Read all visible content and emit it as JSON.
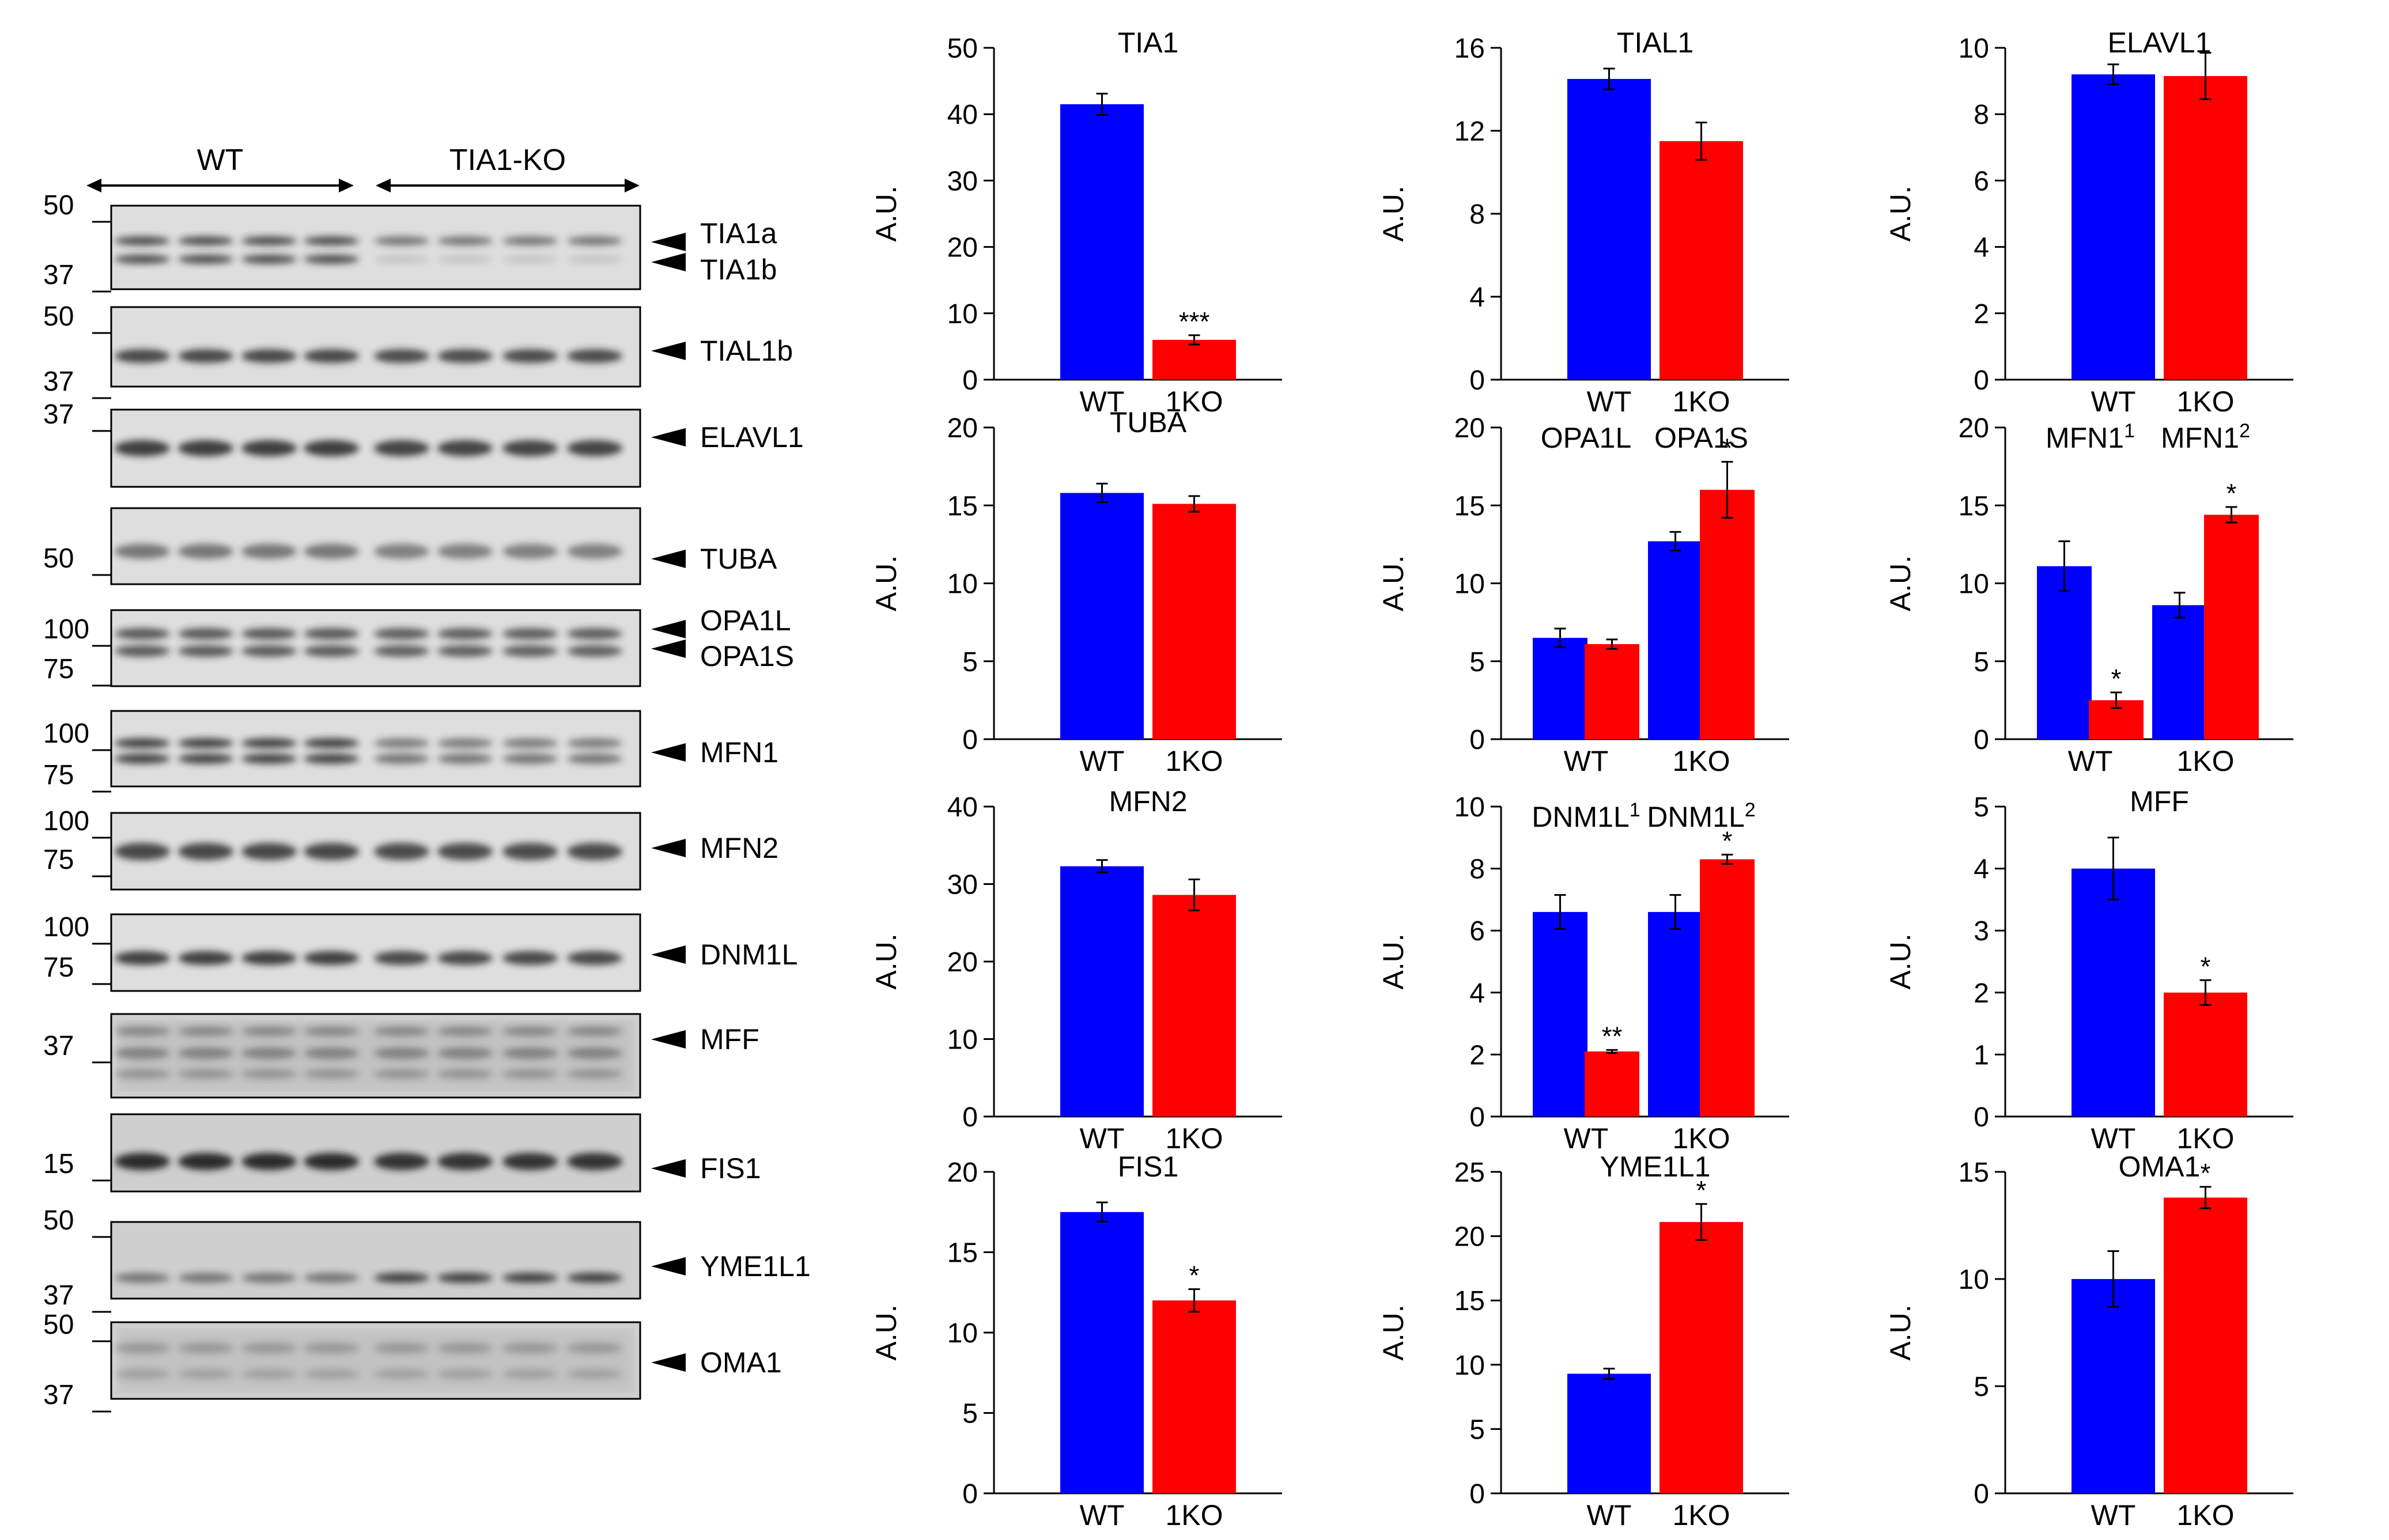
{
  "western_blot": {
    "group_labels": [
      "WT",
      "TIA1-KO"
    ],
    "panels": [
      {
        "mw_markers": [
          "50",
          "37"
        ],
        "bands": [
          "TIA1a",
          "TIA1b"
        ]
      },
      {
        "mw_markers": [
          "50",
          "37"
        ],
        "bands": [
          "TIAL1b"
        ]
      },
      {
        "mw_markers": [
          "37"
        ],
        "bands": [
          "ELAVL1"
        ]
      },
      {
        "mw_markers": [
          "50"
        ],
        "bands": [
          "TUBA"
        ]
      },
      {
        "mw_markers": [
          "100",
          "75"
        ],
        "bands": [
          "OPA1L",
          "OPA1S"
        ]
      },
      {
        "mw_markers": [
          "100",
          "75"
        ],
        "bands": [
          "MFN1"
        ]
      },
      {
        "mw_markers": [
          "100",
          "75"
        ],
        "bands": [
          "MFN2"
        ]
      },
      {
        "mw_markers": [
          "100",
          "75"
        ],
        "bands": [
          "DNM1L"
        ]
      },
      {
        "mw_markers": [
          "37"
        ],
        "bands": [
          "MFF"
        ]
      },
      {
        "mw_markers": [
          "15"
        ],
        "bands": [
          "FIS1"
        ]
      },
      {
        "mw_markers": [
          "50",
          "37"
        ],
        "bands": [
          "YME1L1"
        ]
      },
      {
        "mw_markers": [
          "50",
          "37"
        ],
        "bands": [
          "OMA1"
        ]
      }
    ]
  },
  "colors": {
    "wt": "#0000FF",
    "ko": "#FF0000"
  },
  "chart_data": [
    {
      "type": "bar",
      "title": "TIA1",
      "ylabel": "A.U.",
      "ylim": [
        0,
        50
      ],
      "yticks": [
        "0",
        "10",
        "20",
        "30",
        "40",
        "50"
      ],
      "categories": [
        "WT",
        "1KO"
      ],
      "values": [
        41.5,
        6.0
      ],
      "errors": [
        1.6,
        0.7
      ],
      "significance": [
        "",
        "***"
      ]
    },
    {
      "type": "bar",
      "title": "TIAL1",
      "ylabel": "A.U.",
      "ylim": [
        0,
        16
      ],
      "yticks": [
        "0",
        "4",
        "8",
        "12",
        "16"
      ],
      "categories": [
        "WT",
        "1KO"
      ],
      "values": [
        14.5,
        11.5
      ],
      "errors": [
        0.5,
        0.9
      ],
      "significance": [
        "",
        ""
      ]
    },
    {
      "type": "bar",
      "title": "ELAVL1",
      "ylabel": "A.U.",
      "ylim": [
        0,
        10
      ],
      "yticks": [
        "0",
        "2",
        "4",
        "6",
        "8",
        "10"
      ],
      "categories": [
        "WT",
        "1KO"
      ],
      "values": [
        9.2,
        9.15
      ],
      "errors": [
        0.3,
        0.7
      ],
      "significance": [
        "",
        ""
      ]
    },
    {
      "type": "bar",
      "title": "TUBA",
      "ylabel": "A.U.",
      "ylim": [
        0,
        20
      ],
      "yticks": [
        "0",
        "5",
        "10",
        "15",
        "20"
      ],
      "categories": [
        "WT",
        "1KO"
      ],
      "values": [
        15.8,
        15.1
      ],
      "errors": [
        0.6,
        0.5
      ],
      "significance": [
        "",
        ""
      ]
    },
    {
      "type": "bar",
      "title": "",
      "ylabel": "A.U.",
      "ylim": [
        0,
        20
      ],
      "yticks": [
        "0",
        "5",
        "10",
        "15",
        "20"
      ],
      "group_titles": [
        "OPA1L",
        "OPA1S"
      ],
      "categories": [
        "WT",
        "1KO",
        "WT",
        "1KO"
      ],
      "values": [
        6.5,
        6.1,
        12.7,
        16.0
      ],
      "errors": [
        0.6,
        0.3,
        0.6,
        1.8
      ],
      "significance": [
        "",
        "",
        "",
        "*"
      ],
      "xlabels": [
        "WT",
        "1KO"
      ]
    },
    {
      "type": "bar",
      "title": "",
      "ylabel": "A.U.",
      "ylim": [
        0,
        20
      ],
      "yticks": [
        "0",
        "5",
        "10",
        "15",
        "20"
      ],
      "group_titles": [
        "MFN1",
        "MFN1"
      ],
      "group_title_sups": [
        "1",
        "2"
      ],
      "categories": [
        "WT",
        "1KO",
        "WT",
        "1KO"
      ],
      "values": [
        11.1,
        2.5,
        8.6,
        14.4
      ],
      "errors": [
        1.6,
        0.5,
        0.8,
        0.5
      ],
      "significance": [
        "",
        "*",
        "",
        "*"
      ],
      "xlabels": [
        "WT",
        "1KO"
      ]
    },
    {
      "type": "bar",
      "title": "MFN2",
      "ylabel": "A.U.",
      "ylim": [
        0,
        40
      ],
      "yticks": [
        "0",
        "10",
        "20",
        "30",
        "40"
      ],
      "categories": [
        "WT",
        "1KO"
      ],
      "values": [
        32.3,
        28.6
      ],
      "errors": [
        0.8,
        2.0
      ],
      "significance": [
        "",
        ""
      ]
    },
    {
      "type": "bar",
      "title": "",
      "ylabel": "A.U.",
      "ylim": [
        0,
        10
      ],
      "yticks": [
        "0",
        "2",
        "4",
        "6",
        "8",
        "10"
      ],
      "group_titles": [
        "DNM1L",
        "DNM1L"
      ],
      "group_title_sups": [
        "1",
        "2"
      ],
      "categories": [
        "WT",
        "1KO",
        "WT",
        "1KO"
      ],
      "values": [
        6.6,
        2.1,
        6.6,
        8.3
      ],
      "errors": [
        0.55,
        0.05,
        0.55,
        0.15
      ],
      "significance": [
        "",
        "**",
        "",
        "*"
      ],
      "xlabels": [
        "WT",
        "1KO"
      ]
    },
    {
      "type": "bar",
      "title": "MFF",
      "ylabel": "A.U.",
      "ylim": [
        0,
        5
      ],
      "yticks": [
        "0",
        "1",
        "2",
        "3",
        "4",
        "5"
      ],
      "categories": [
        "WT",
        "1KO"
      ],
      "values": [
        4.0,
        2.0
      ],
      "errors": [
        0.5,
        0.2
      ],
      "significance": [
        "",
        "*"
      ]
    },
    {
      "type": "bar",
      "title": "FIS1",
      "ylabel": "A.U.",
      "ylim": [
        0,
        20
      ],
      "yticks": [
        "0",
        "5",
        "10",
        "15",
        "20"
      ],
      "categories": [
        "WT",
        "1KO"
      ],
      "values": [
        17.5,
        12.0
      ],
      "errors": [
        0.6,
        0.7
      ],
      "significance": [
        "",
        "*"
      ]
    },
    {
      "type": "bar",
      "title": "YME1L1",
      "ylabel": "A.U.",
      "ylim": [
        0,
        25
      ],
      "yticks": [
        "0",
        "5",
        "10",
        "15",
        "20",
        "25"
      ],
      "categories": [
        "WT",
        "1KO"
      ],
      "values": [
        9.3,
        21.1
      ],
      "errors": [
        0.4,
        1.4
      ],
      "significance": [
        "",
        "*"
      ]
    },
    {
      "type": "bar",
      "title": "OMA1",
      "ylabel": "A.U.",
      "ylim": [
        0,
        15
      ],
      "yticks": [
        "0",
        "5",
        "10",
        "15"
      ],
      "categories": [
        "WT",
        "1KO"
      ],
      "values": [
        10.0,
        13.8
      ],
      "errors": [
        1.3,
        0.5
      ],
      "significance": [
        "",
        "*"
      ]
    }
  ]
}
